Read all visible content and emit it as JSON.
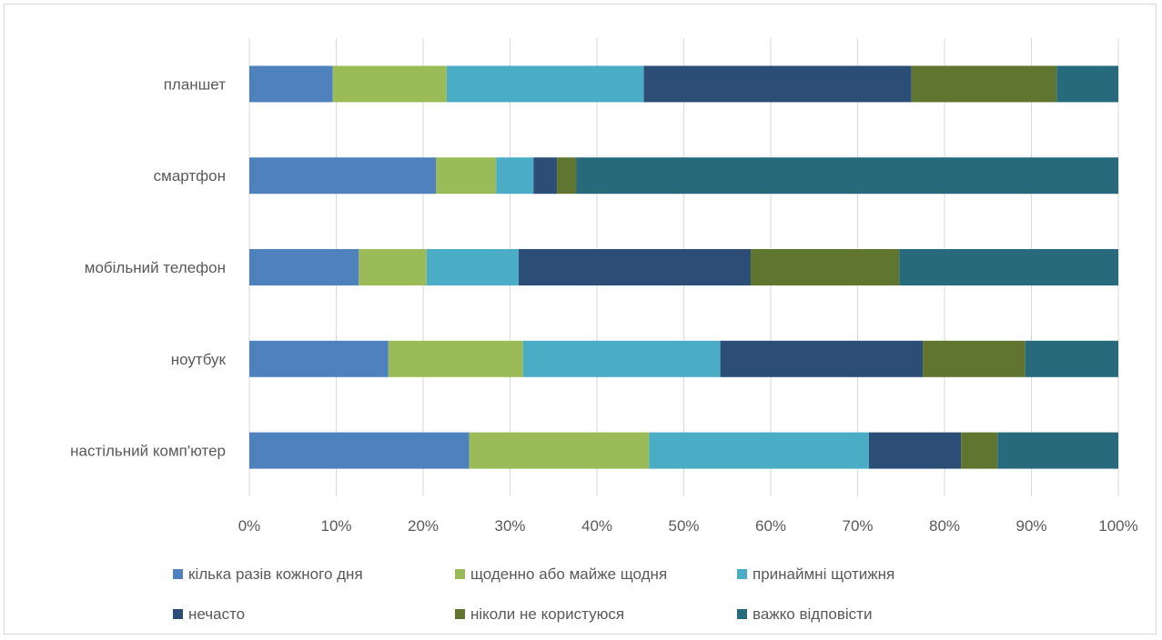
{
  "chart_data": {
    "type": "bar",
    "orientation": "horizontal",
    "stacked": "percent",
    "categories": [
      "настільний комп'ютер",
      "ноутбук",
      "мобільний телефон",
      "смартфон",
      "планшет"
    ],
    "series": [
      {
        "name": "кілька разів кожного дня",
        "color": "#4f81bd",
        "values": [
          25.3,
          16.0,
          12.6,
          21.5,
          9.6
        ]
      },
      {
        "name": "щоденно або майже щодня",
        "color": "#9bbb59",
        "values": [
          20.7,
          15.5,
          7.8,
          6.9,
          13.1
        ]
      },
      {
        "name": "принаймні щотижня",
        "color": "#4bacc6",
        "values": [
          25.3,
          22.7,
          10.6,
          4.3,
          22.7
        ]
      },
      {
        "name": "нечасто",
        "color": "#2c4d75",
        "values": [
          10.6,
          23.3,
          26.7,
          2.7,
          30.8
        ]
      },
      {
        "name": "ніколи не користуюся",
        "color": "#5f7530",
        "values": [
          4.2,
          11.8,
          17.1,
          2.2,
          16.7
        ]
      },
      {
        "name": "важко відповісти",
        "color": "#276a7c",
        "values": [
          13.9,
          10.7,
          25.2,
          62.4,
          7.1
        ]
      }
    ],
    "xlim": [
      0,
      100
    ],
    "x_ticks": [
      "0%",
      "10%",
      "20%",
      "30%",
      "40%",
      "50%",
      "60%",
      "70%",
      "80%",
      "90%",
      "100%"
    ],
    "grid": "vertical",
    "legend_position": "bottom",
    "title": "",
    "xlabel": "",
    "ylabel": ""
  }
}
